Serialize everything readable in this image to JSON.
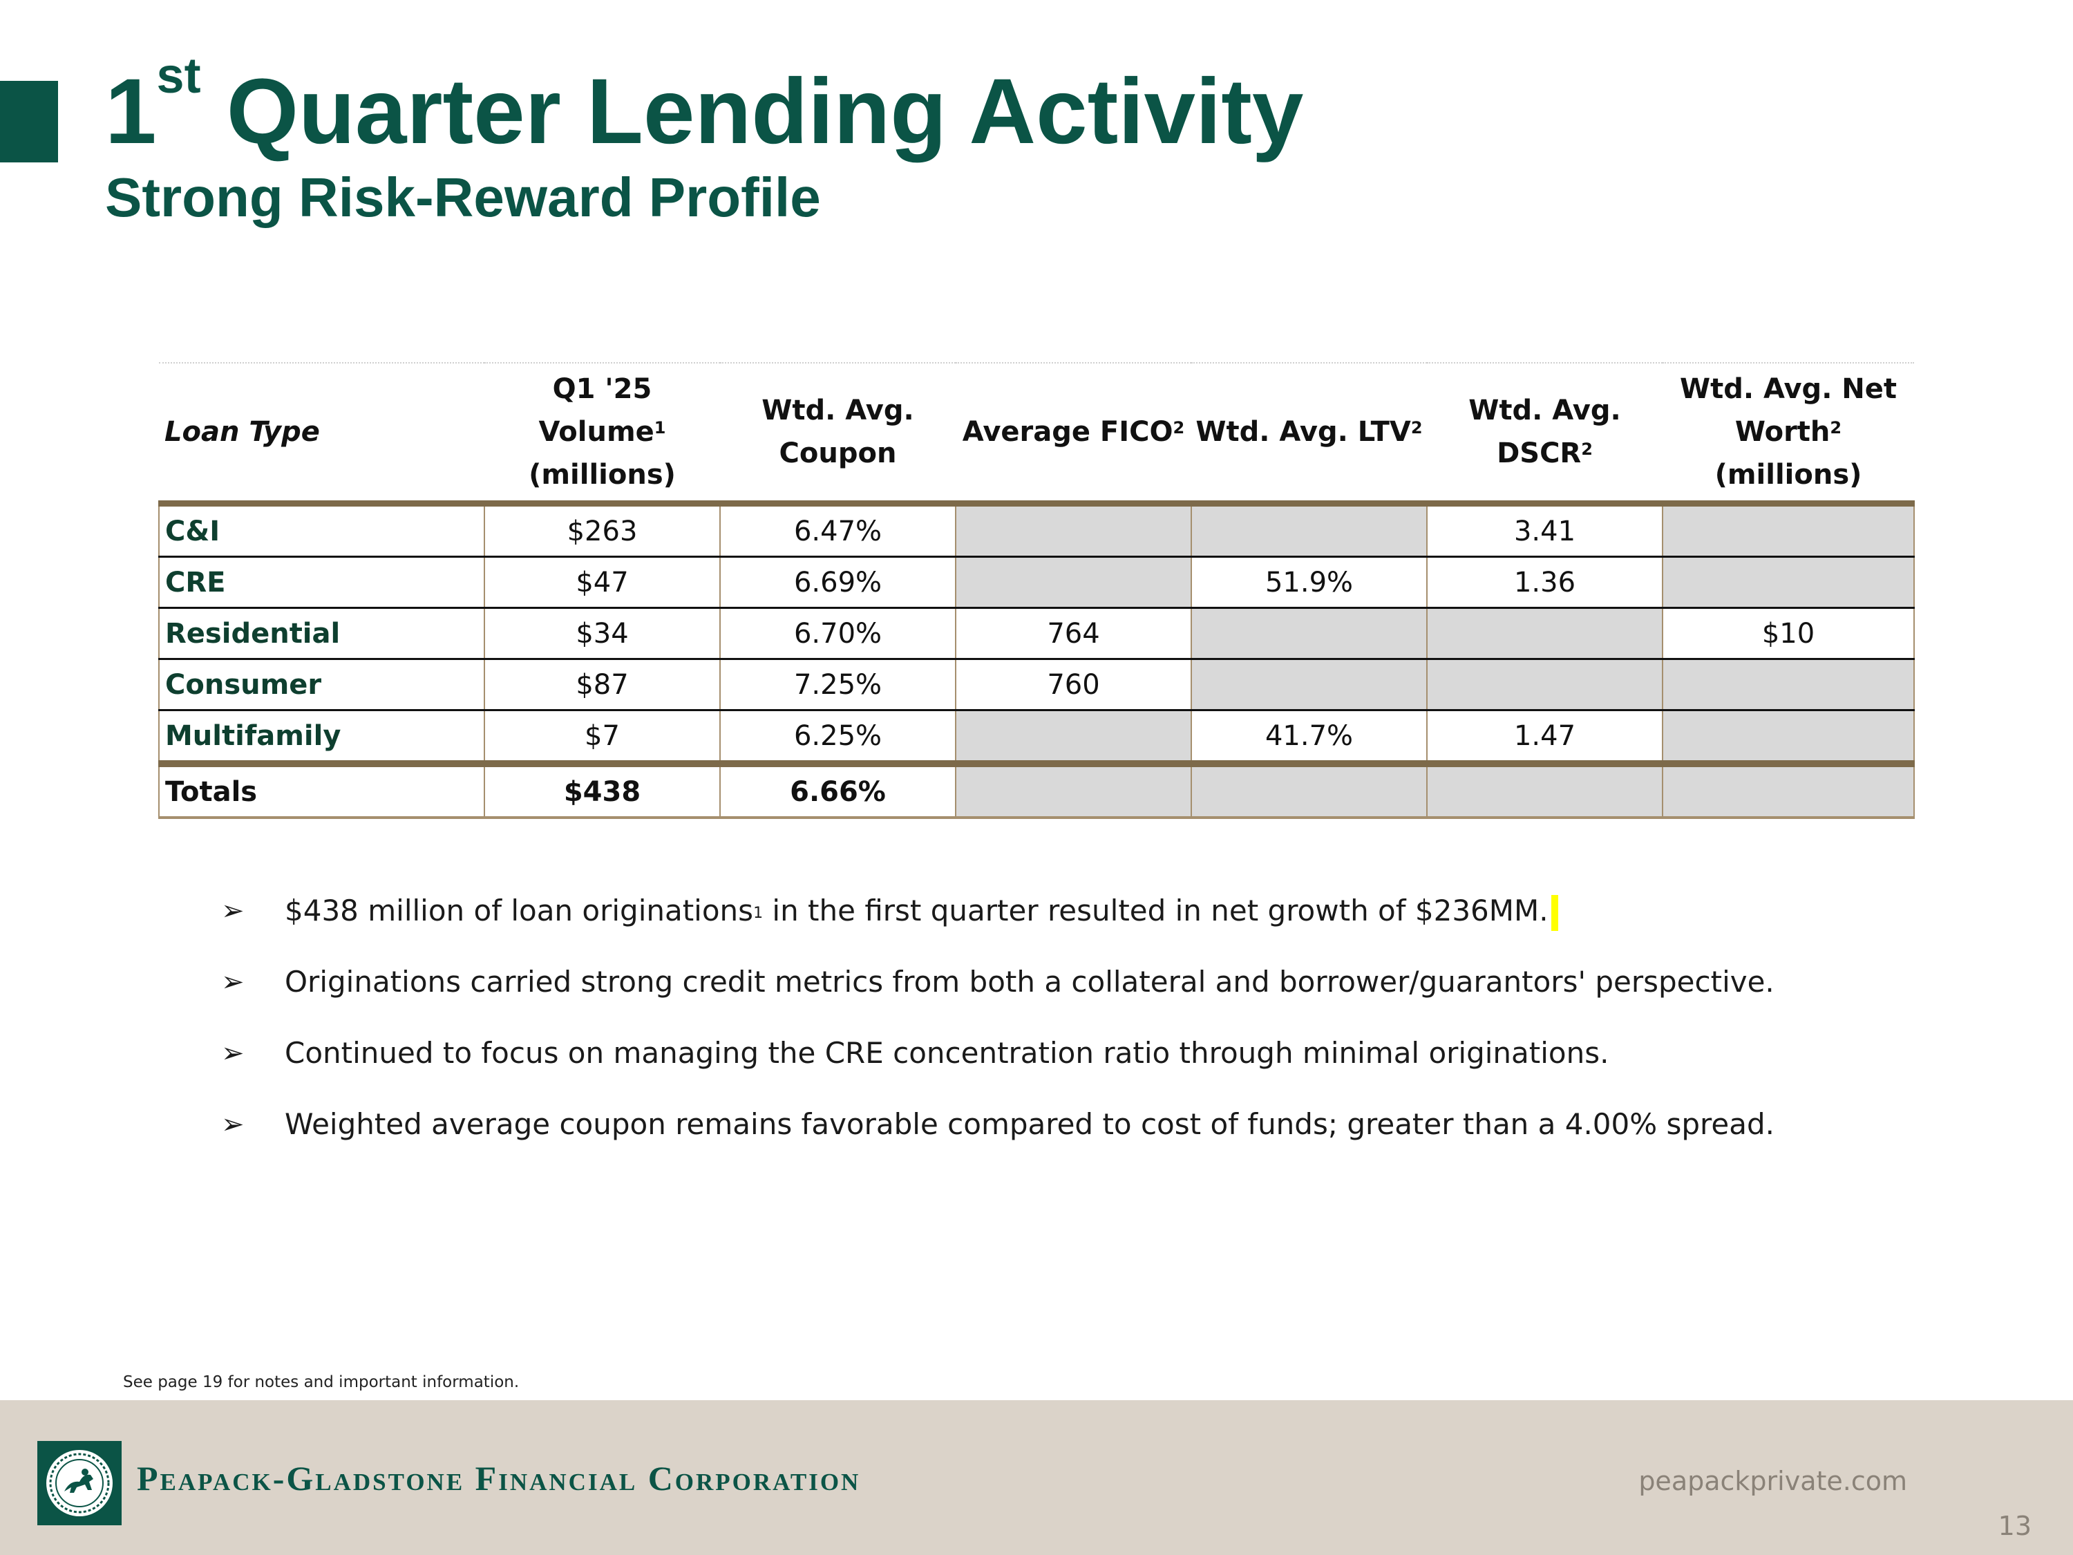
{
  "title": {
    "main": "Quarter Lending Activity",
    "number": "1",
    "ordinal": "st"
  },
  "subtitle": "Strong Risk-Reward Profile",
  "table": {
    "headers": [
      {
        "text": "Loan Type"
      },
      {
        "line1": "Q1 '25 Volume",
        "sup": "1",
        "line2": "(millions)"
      },
      {
        "line1": "Wtd. Avg.",
        "line2": "Coupon"
      },
      {
        "line1": "Average FICO",
        "sup": "2"
      },
      {
        "line1": "Wtd. Avg. LTV",
        "sup": "2"
      },
      {
        "line1": "Wtd. Avg. DSCR",
        "sup": "2"
      },
      {
        "line1": "Wtd. Avg. Net",
        "line2a": "Worth",
        "sup": "2",
        "line2b": " (millions)"
      }
    ],
    "rows": [
      {
        "type": "C&I",
        "volume": "$263",
        "coupon": "6.47%",
        "fico": "",
        "ltv": "",
        "dscr": "3.41",
        "net_worth": ""
      },
      {
        "type": "CRE",
        "volume": "$47",
        "coupon": "6.69%",
        "fico": "",
        "ltv": "51.9%",
        "dscr": "1.36",
        "net_worth": ""
      },
      {
        "type": "Residential",
        "volume": "$34",
        "coupon": "6.70%",
        "fico": "764",
        "ltv": "",
        "dscr": "",
        "net_worth": "$10"
      },
      {
        "type": "Consumer",
        "volume": "$87",
        "coupon": "7.25%",
        "fico": "760",
        "ltv": "",
        "dscr": "",
        "net_worth": ""
      },
      {
        "type": "Multifamily",
        "volume": "$7",
        "coupon": "6.25%",
        "fico": "",
        "ltv": "41.7%",
        "dscr": "1.47",
        "net_worth": ""
      }
    ],
    "totals": {
      "label": "Totals",
      "volume": "$438",
      "coupon": "6.66%"
    }
  },
  "bullets": [
    {
      "pre": "$438 million of loan originations",
      "sup": "1",
      "post": " in the first quarter resulted in net growth of $236MM."
    },
    {
      "pre": "Originations carried strong credit metrics from both a collateral and borrower/guarantors' perspective."
    },
    {
      "pre": "Continued to focus on managing the CRE concentration ratio through minimal originations."
    },
    {
      "pre": "Weighted average coupon remains favorable compared to cost of funds; greater than a 4.00% spread."
    }
  ],
  "footnote": "See page 19 for notes and important information.",
  "footer": {
    "company": "Peapack-Gladstone Financial Corporation",
    "website": "peapackprivate.com",
    "page_number": "13"
  },
  "colors": {
    "brand_green": "#0b5446",
    "table_rule": "#7d6a4a",
    "shaded_cell": "#d9d9d9",
    "footer_bg": "#dbd3c9"
  }
}
